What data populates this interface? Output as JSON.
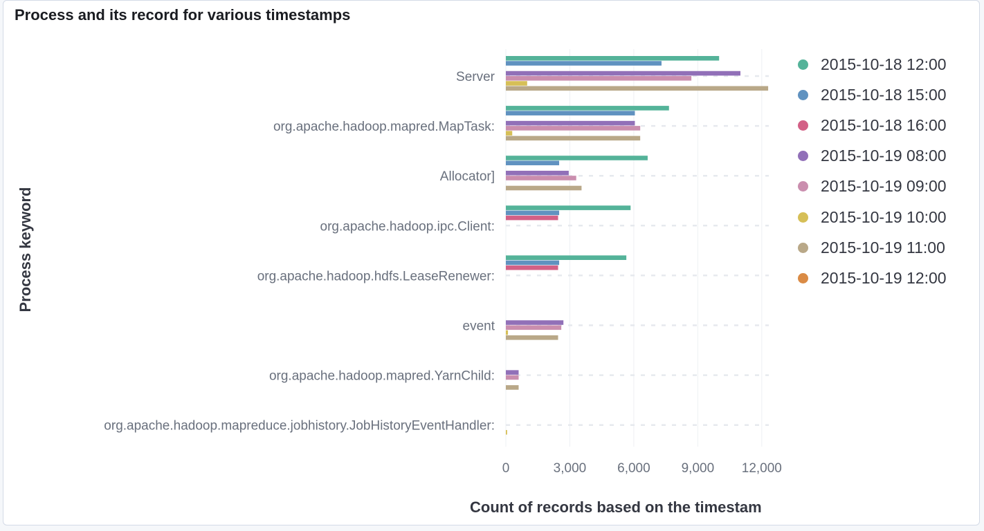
{
  "panel": {
    "title": "Process and its record for various timestamps"
  },
  "chart_data": {
    "type": "bar",
    "orientation": "horizontal",
    "title": "Process and its record for various timestamps",
    "xlabel": "Count of records based on the timestam",
    "ylabel": "Process keyword",
    "xlim": [
      0,
      12200
    ],
    "x_ticks": [
      0,
      3000,
      6000,
      9000,
      12000
    ],
    "x_tick_labels": [
      "0",
      "3,000",
      "6,000",
      "9,000",
      "12,000"
    ],
    "grid": true,
    "legend_position": "right",
    "categories": [
      "Server",
      "org.apache.hadoop.mapred.MapTask:",
      "Allocator]",
      "org.apache.hadoop.ipc.Client:",
      "org.apache.hadoop.hdfs.LeaseRenewer:",
      "event",
      "org.apache.hadoop.mapred.YarnChild:",
      "org.apache.hadoop.mapreduce.jobhistory.JobHistoryEventHandler:"
    ],
    "series": [
      {
        "name": "2015-10-18 12:00",
        "color": "#54b399",
        "values": [
          10000,
          7650,
          6650,
          5850,
          5650,
          0,
          0,
          0
        ]
      },
      {
        "name": "2015-10-18 15:00",
        "color": "#6092c0",
        "values": [
          7300,
          6050,
          2500,
          2500,
          2500,
          0,
          0,
          0
        ]
      },
      {
        "name": "2015-10-18 16:00",
        "color": "#d36086",
        "values": [
          0,
          0,
          0,
          2450,
          2450,
          0,
          0,
          0
        ]
      },
      {
        "name": "2015-10-19 08:00",
        "color": "#9170b8",
        "values": [
          11000,
          6050,
          2950,
          0,
          0,
          2700,
          600,
          0
        ]
      },
      {
        "name": "2015-10-19 09:00",
        "color": "#ca8eae",
        "values": [
          8700,
          6300,
          3300,
          0,
          0,
          2600,
          600,
          0
        ]
      },
      {
        "name": "2015-10-19 10:00",
        "color": "#d6bf57",
        "values": [
          1000,
          300,
          0,
          0,
          0,
          100,
          0,
          60
        ]
      },
      {
        "name": "2015-10-19 11:00",
        "color": "#b9a888",
        "values": [
          12300,
          6300,
          3550,
          0,
          0,
          2450,
          600,
          0
        ]
      },
      {
        "name": "2015-10-19 12:00",
        "color": "#da8b45",
        "values": [
          0,
          0,
          0,
          0,
          0,
          0,
          0,
          0
        ]
      }
    ]
  }
}
